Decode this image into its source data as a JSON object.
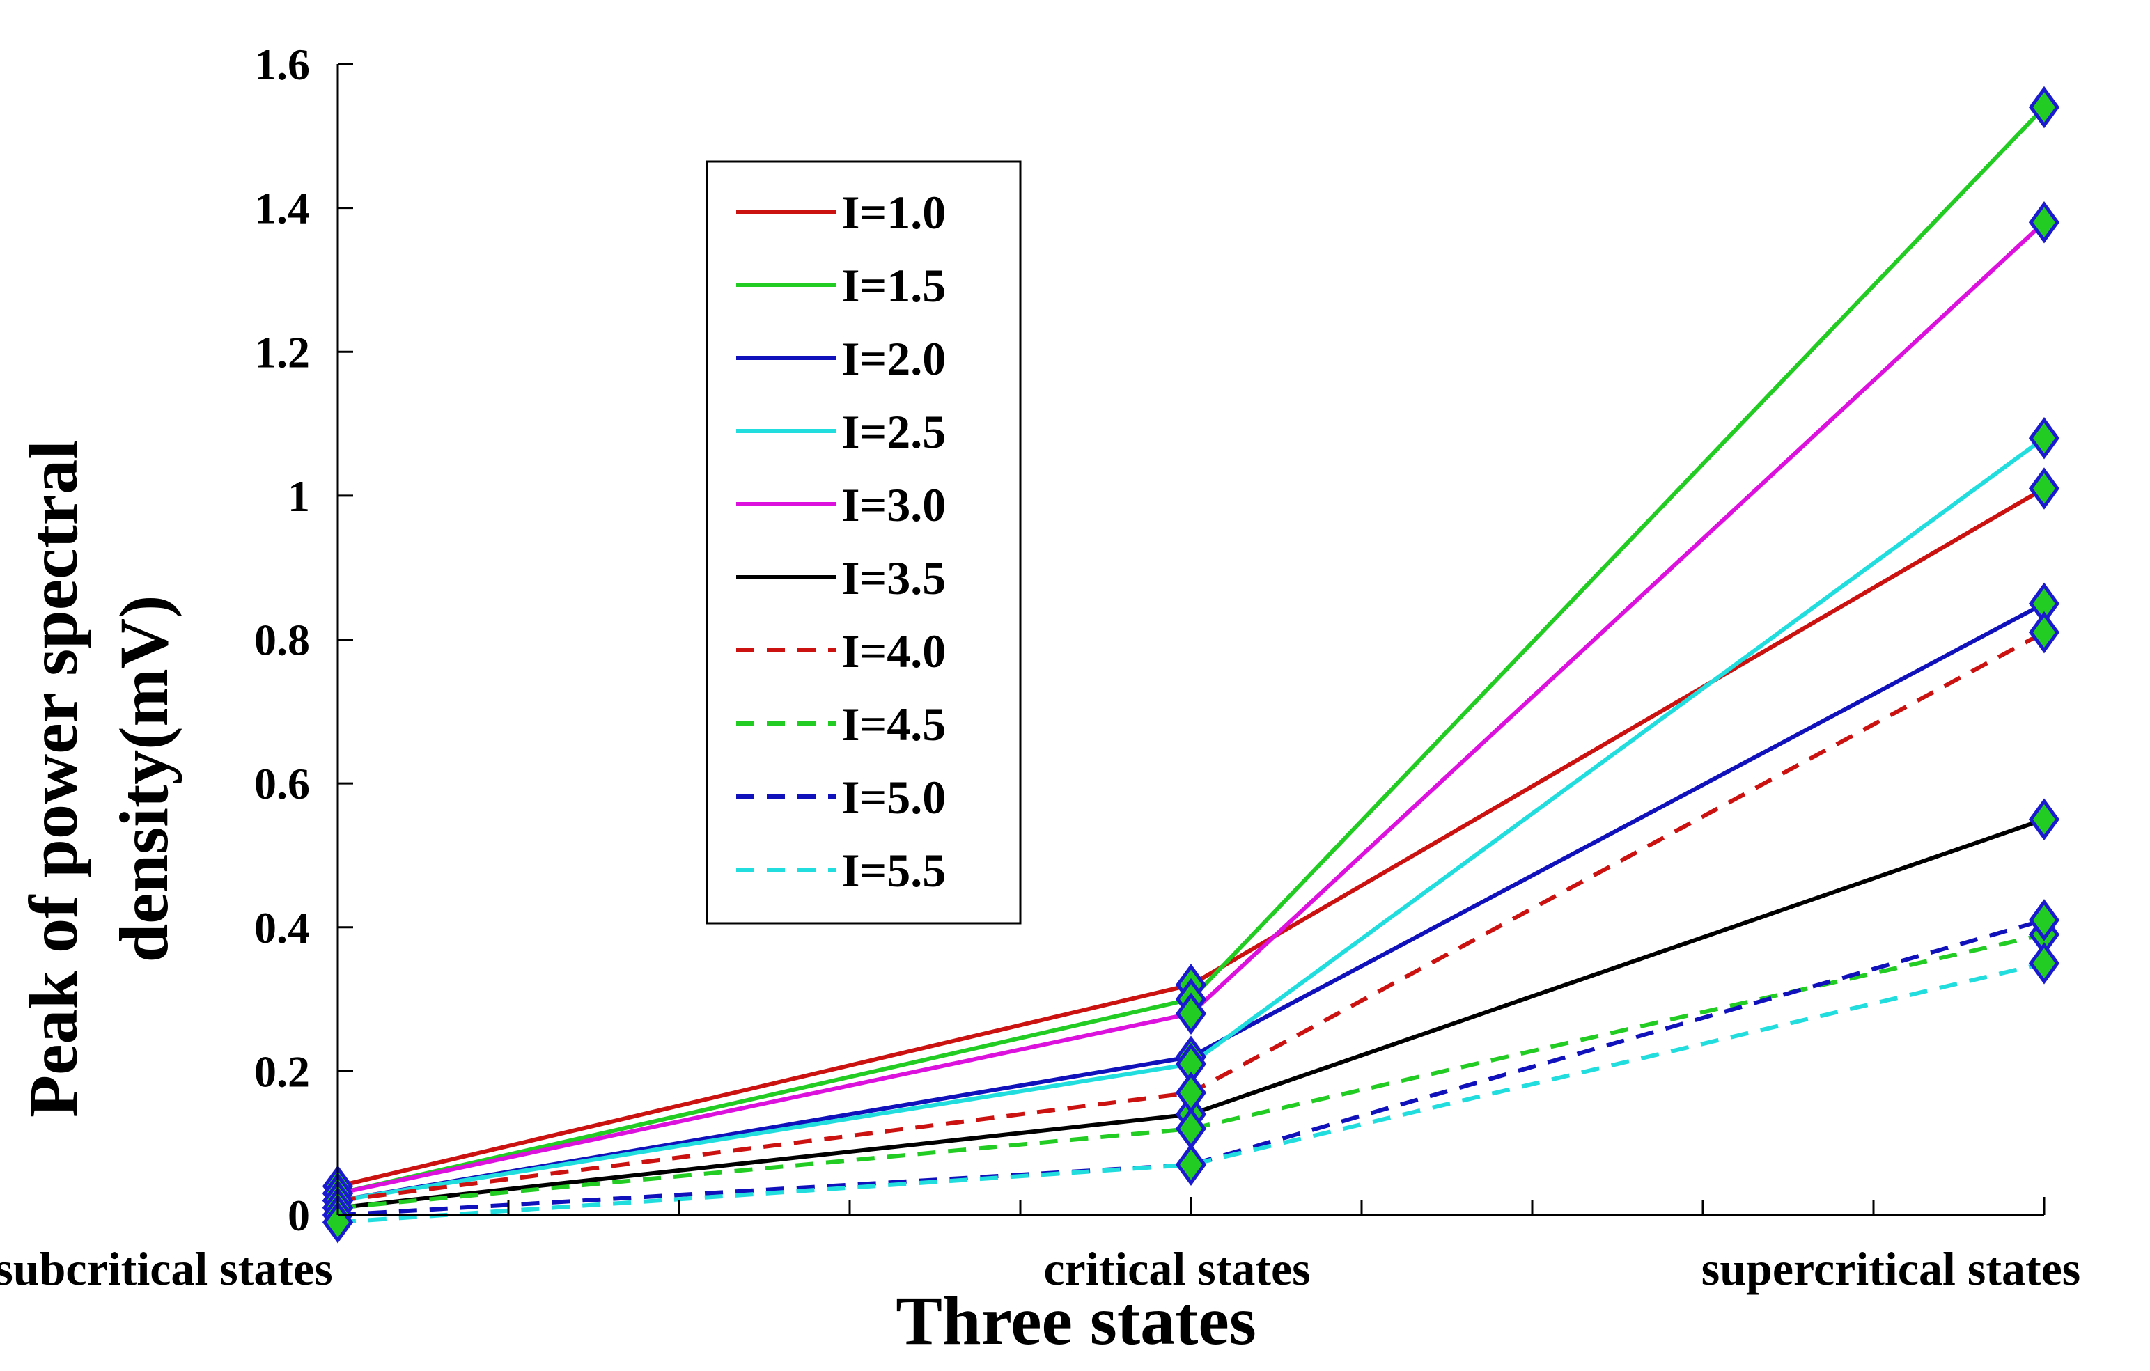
{
  "chart_data": {
    "type": "line",
    "title": "",
    "xlabel": "Three states",
    "ylabel": "Peak of power spectral density(mV)",
    "categories": [
      "subcritical states",
      "critical states",
      "supercritical states"
    ],
    "ylim": [
      0,
      1.6
    ],
    "yticks": [
      "0",
      "0.2",
      "0.4",
      "0.6",
      "0.8",
      "1",
      "1.2",
      "1.4",
      "1.6"
    ],
    "ytick_values": [
      0,
      0.2,
      0.4,
      0.6,
      0.8,
      1.0,
      1.2,
      1.4,
      1.6
    ],
    "legend_position": "upper-left-inside",
    "marker": {
      "shape": "diamond",
      "fill": "#22cc22",
      "stroke": "#1a1ad0"
    },
    "series": [
      {
        "name": "I=1.0",
        "color": "#cc1111",
        "dash": "solid",
        "values": [
          0.04,
          0.32,
          1.01
        ]
      },
      {
        "name": "I=1.5",
        "color": "#22cc22",
        "dash": "solid",
        "values": [
          0.03,
          0.3,
          1.54
        ]
      },
      {
        "name": "I=2.0",
        "color": "#1111bb",
        "dash": "solid",
        "values": [
          0.02,
          0.22,
          0.85
        ]
      },
      {
        "name": "I=2.5",
        "color": "#22dddd",
        "dash": "solid",
        "values": [
          0.02,
          0.21,
          1.08
        ]
      },
      {
        "name": "I=3.0",
        "color": "#dd11dd",
        "dash": "solid",
        "values": [
          0.03,
          0.28,
          1.38
        ]
      },
      {
        "name": "I=3.5",
        "color": "#000000",
        "dash": "solid",
        "values": [
          0.01,
          0.14,
          0.55
        ]
      },
      {
        "name": "I=4.0",
        "color": "#cc1111",
        "dash": "dashed",
        "values": [
          0.02,
          0.17,
          0.81
        ]
      },
      {
        "name": "I=4.5",
        "color": "#22cc22",
        "dash": "dashed",
        "values": [
          0.01,
          0.12,
          0.39
        ]
      },
      {
        "name": "I=5.0",
        "color": "#1111bb",
        "dash": "dashed",
        "values": [
          0.0,
          0.07,
          0.41
        ]
      },
      {
        "name": "I=5.5",
        "color": "#22dddd",
        "dash": "dashed",
        "values": [
          -0.01,
          0.07,
          0.35
        ]
      }
    ]
  }
}
